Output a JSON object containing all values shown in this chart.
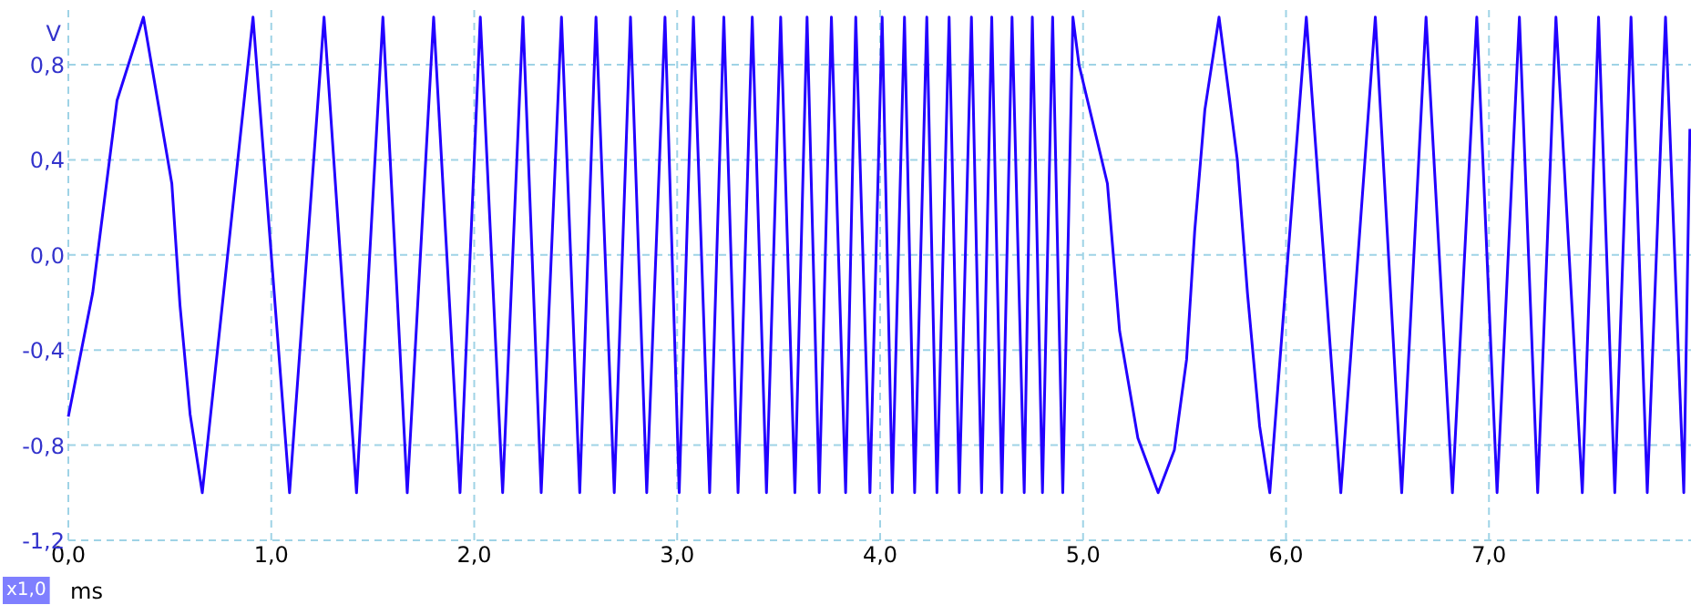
{
  "chart_data": {
    "type": "line",
    "xlabel": "ms",
    "ylabel": "V",
    "annotations": [
      "x1,0"
    ],
    "xlim": [
      0,
      8.0
    ],
    "ylim": [
      -1.2,
      1.03
    ],
    "xticks": [
      {
        "value": 0,
        "label": "0,0"
      },
      {
        "value": 1,
        "label": "1,0"
      },
      {
        "value": 2,
        "label": "2,0"
      },
      {
        "value": 3,
        "label": "3,0"
      },
      {
        "value": 4,
        "label": "4,0"
      },
      {
        "value": 5,
        "label": "5,0"
      },
      {
        "value": 6,
        "label": "6,0"
      },
      {
        "value": 7,
        "label": "7,0"
      }
    ],
    "yticks": [
      {
        "value": -1.2,
        "label": "-1,2"
      },
      {
        "value": -0.8,
        "label": "-0,8"
      },
      {
        "value": -0.4,
        "label": "-0,4"
      },
      {
        "value": 0,
        "label": "0,0"
      },
      {
        "value": 0.4,
        "label": "0,4"
      },
      {
        "value": 0.8,
        "label": "0,8"
      }
    ],
    "grid": true,
    "line_style": "solid",
    "marker": "none",
    "series": [
      {
        "color": "#2200ff",
        "x": [
          0,
          0.12,
          0.24,
          0.37,
          0.51,
          0.55,
          0.6,
          0.66,
          0.91,
          1.09,
          1.26,
          1.42,
          1.55,
          1.67,
          1.8,
          1.93,
          2.03,
          2.14,
          2.24,
          2.33,
          2.43,
          2.52,
          2.6,
          2.69,
          2.77,
          2.85,
          2.94,
          3.01,
          3.08,
          3.16,
          3.23,
          3.3,
          3.37,
          3.44,
          3.51,
          3.58,
          3.64,
          3.7,
          3.76,
          3.83,
          3.88,
          3.95,
          4.01,
          4.06,
          4.12,
          4.17,
          4.23,
          4.28,
          4.34,
          4.39,
          4.45,
          4.5,
          4.55,
          4.6,
          4.65,
          4.71,
          4.75,
          4.8,
          4.85,
          4.9,
          4.95,
          4.98,
          5.12,
          5.18,
          5.27,
          5.37,
          5.45,
          5.51,
          5.55,
          5.6,
          5.67,
          5.76,
          5.81,
          5.87,
          5.92,
          6.1,
          6.27,
          6.44,
          6.57,
          6.69,
          6.82,
          6.94,
          7.04,
          7.15,
          7.24,
          7.33,
          7.46,
          7.54,
          7.62,
          7.7,
          7.78,
          7.87,
          7.96,
          7.99
        ],
        "values": [
          -0.68,
          -0.16,
          0.65,
          1.0,
          0.3,
          -0.21,
          -0.67,
          -1.0,
          1.0,
          -1.0,
          1.0,
          -1.0,
          1.0,
          -1.0,
          1.0,
          -1.0,
          1.0,
          -1.0,
          1.0,
          -1.0,
          1.0,
          -1.0,
          1.0,
          -1.0,
          1.0,
          -1.0,
          1.0,
          -1.0,
          1.0,
          -1.0,
          1.0,
          -1.0,
          1.0,
          -1.0,
          1.0,
          -1.0,
          1.0,
          -1.0,
          1.0,
          -1.0,
          1.0,
          -1.0,
          1.0,
          -1.0,
          1.0,
          -1.0,
          1.0,
          -1.0,
          1.0,
          -1.0,
          1.0,
          -1.0,
          1.0,
          -1.0,
          1.0,
          -1.0,
          1.0,
          -1.0,
          1.0,
          -1.0,
          1.0,
          0.8,
          0.3,
          -0.32,
          -0.77,
          -1.0,
          -0.82,
          -0.44,
          0.1,
          0.61,
          1.0,
          0.4,
          -0.16,
          -0.72,
          -1.0,
          1.0,
          -1.0,
          1.0,
          -1.0,
          1.0,
          -1.0,
          1.0,
          -1.0,
          1.0,
          -1.0,
          1.0,
          -1.0,
          1.0,
          -1.0,
          1.0,
          -1.0,
          1.0,
          -1.0,
          0.53
        ]
      }
    ]
  }
}
